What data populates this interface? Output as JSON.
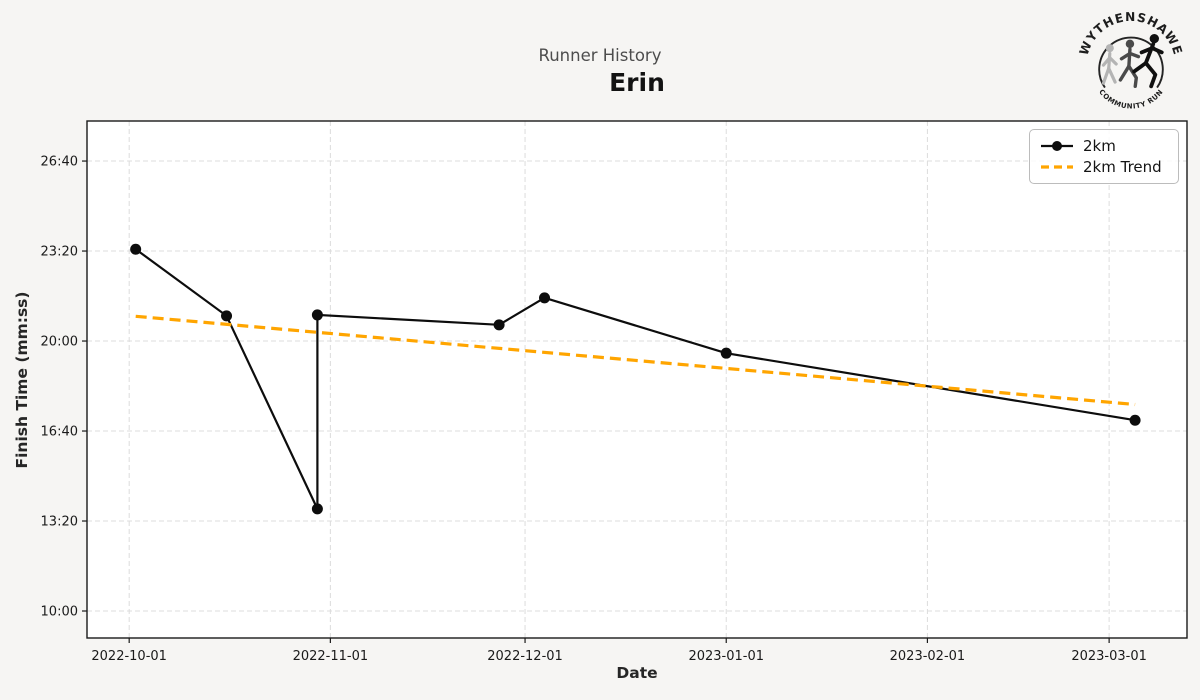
{
  "chart_data": {
    "type": "line",
    "title": "Runner History",
    "subtitle": "Erin",
    "xlabel": "Date",
    "ylabel": "Finish Time (mm:ss)",
    "x_ticks": [
      "2022-10-01",
      "2022-11-01",
      "2022-12-01",
      "2023-01-01",
      "2023-02-01",
      "2023-03-01"
    ],
    "y_ticks": [
      "26:40",
      "23:20",
      "20:00",
      "16:40",
      "13:20",
      "10:00"
    ],
    "x_domain": [
      "2022-09-24T12:00:00Z",
      "2023-03-13T00:00:00Z"
    ],
    "y_domain_seconds": [
      540,
      1689
    ],
    "grid": true,
    "legend_position": "upper right",
    "series": [
      {
        "name": "2km",
        "color": "#0d0d0d",
        "style": "solid",
        "marker": "circle",
        "width": 2.2,
        "points": [
          {
            "date": "2022-10-02",
            "time": "23:24"
          },
          {
            "date": "2022-10-16",
            "time": "20:56"
          },
          {
            "date": "2022-10-30",
            "time": "13:47"
          },
          {
            "date": "2022-10-30",
            "time": "20:58"
          },
          {
            "date": "2022-11-27",
            "time": "20:36"
          },
          {
            "date": "2022-12-04",
            "time": "21:36"
          },
          {
            "date": "2023-01-01",
            "time": "19:33"
          },
          {
            "date": "2023-03-05",
            "time": "17:04"
          }
        ]
      },
      {
        "name": "2km Trend",
        "color": "#ffa500",
        "style": "dashed",
        "dash": "11 6",
        "width": 3.2,
        "points": [
          {
            "date": "2022-10-02",
            "time": "20:55"
          },
          {
            "date": "2023-03-05",
            "time": "17:39"
          }
        ]
      }
    ]
  },
  "logo": {
    "top_text": "WYTHENSHAWE",
    "bottom_text": "COMMUNITY RUN"
  }
}
